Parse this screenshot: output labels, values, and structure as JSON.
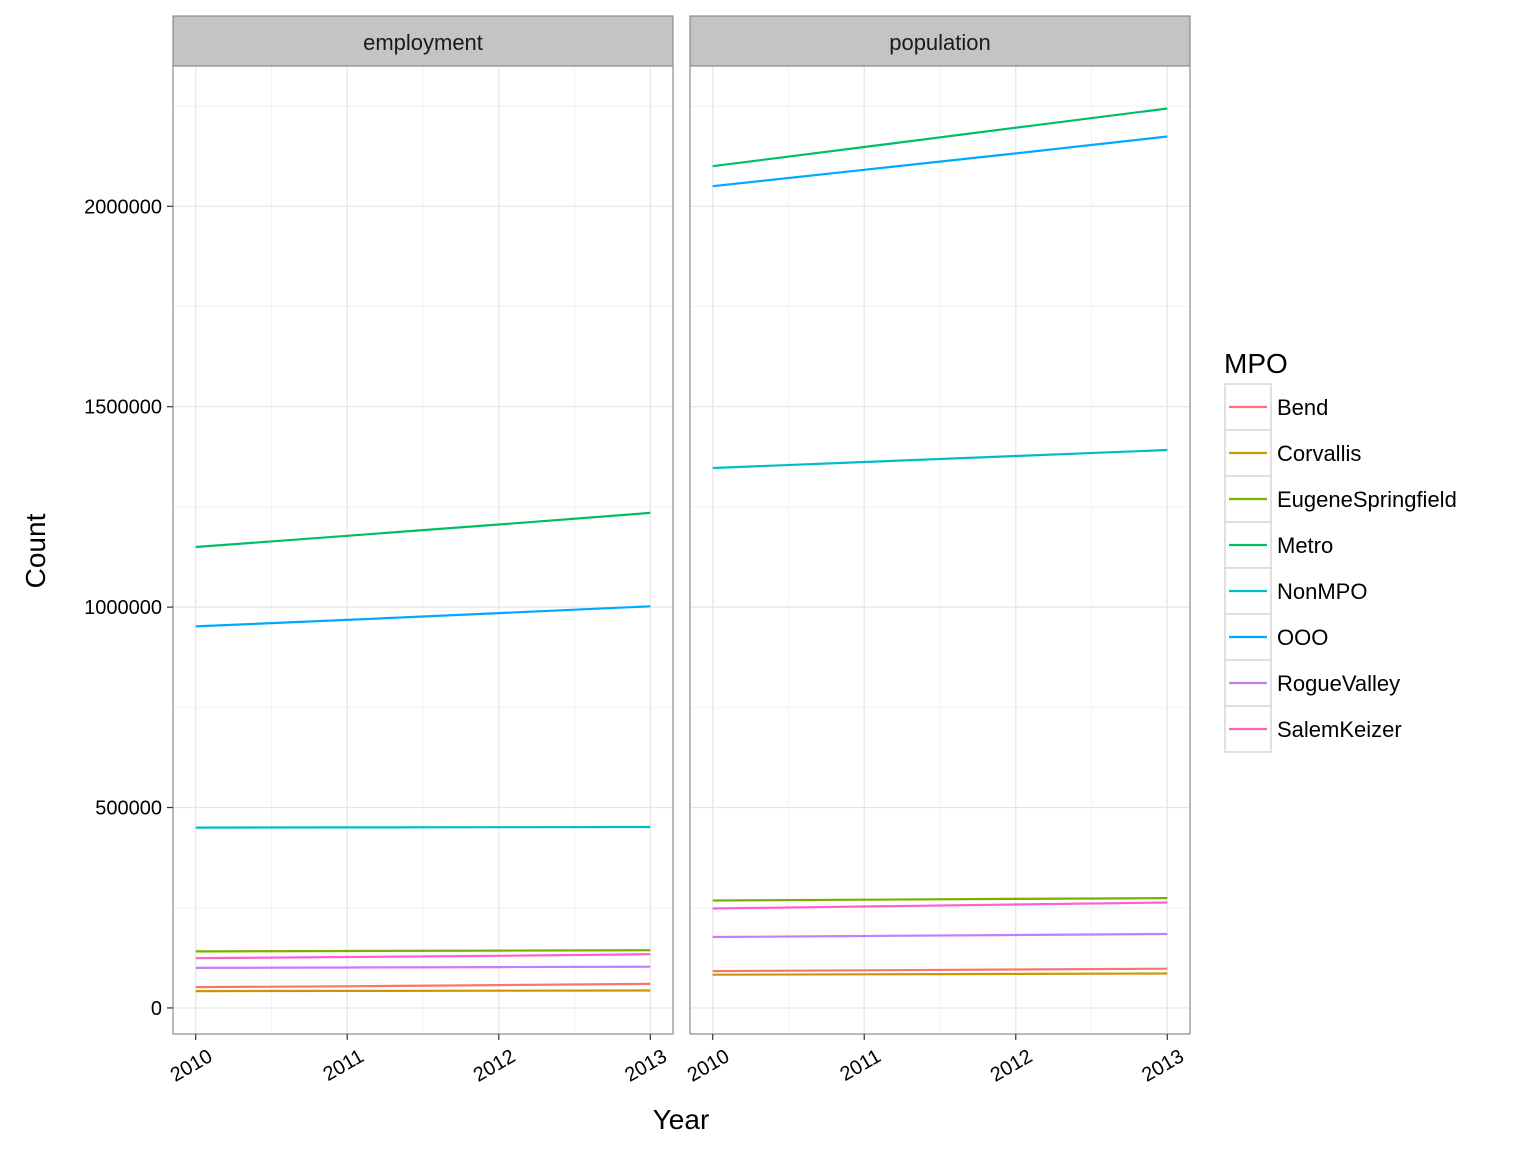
{
  "chart_data": {
    "type": "line",
    "xlabel": "Year",
    "ylabel": "Count",
    "x": [
      2010,
      2011,
      2012,
      2013
    ],
    "x_ticks": [
      "2010",
      "2011",
      "2012",
      "2013"
    ],
    "ylim": [
      -65000,
      2350000
    ],
    "y_ticks": [
      0,
      500000,
      1000000,
      1500000,
      2000000
    ],
    "y_tick_labels": [
      "0",
      "500000",
      "1000000",
      "1500000",
      "2000000"
    ],
    "grid": true,
    "legend": {
      "title": "MPO",
      "placement": "right",
      "entries": [
        "Bend",
        "Corvallis",
        "EugeneSpringfield",
        "Metro",
        "NonMPO",
        "OOO",
        "RogueValley",
        "SalemKeizer"
      ]
    },
    "colors": {
      "Bend": "#F8766D",
      "Corvallis": "#CD9600",
      "EugeneSpringfield": "#7CAE00",
      "Metro": "#00BE67",
      "NonMPO": "#00BFC4",
      "OOO": "#00A9FF",
      "RogueValley": "#C77CFF",
      "SalemKeizer": "#FF61CC"
    },
    "panels": [
      {
        "facet": "employment",
        "series": [
          {
            "name": "Bend",
            "values": [
              52000,
              54000,
              57000,
              60000
            ]
          },
          {
            "name": "Corvallis",
            "values": [
              42000,
              42500,
              43000,
              43500
            ]
          },
          {
            "name": "EugeneSpringfield",
            "values": [
              141000,
              142000,
              143000,
              144000
            ]
          },
          {
            "name": "Metro",
            "values": [
              1150000,
              1178000,
              1206000,
              1235000
            ]
          },
          {
            "name": "NonMPO",
            "values": [
              450000,
              450500,
              451000,
              451500
            ]
          },
          {
            "name": "OOO",
            "values": [
              952000,
              968000,
              985000,
              1002000
            ]
          },
          {
            "name": "RogueValley",
            "values": [
              100000,
              101000,
              102000,
              103000
            ]
          },
          {
            "name": "SalemKeizer",
            "values": [
              124000,
              127000,
              130000,
              134000
            ]
          }
        ]
      },
      {
        "facet": "population",
        "series": [
          {
            "name": "Bend",
            "values": [
              92000,
              94000,
              96000,
              98000
            ]
          },
          {
            "name": "Corvallis",
            "values": [
              83000,
              84000,
              85000,
              86000
            ]
          },
          {
            "name": "EugeneSpringfield",
            "values": [
              268000,
              270000,
              272000,
              274000
            ]
          },
          {
            "name": "Metro",
            "values": [
              2100000,
              2148000,
              2196000,
              2244000
            ]
          },
          {
            "name": "NonMPO",
            "values": [
              1347000,
              1362000,
              1377000,
              1392000
            ]
          },
          {
            "name": "OOO",
            "values": [
              2050000,
              2091000,
              2132000,
              2174000
            ]
          },
          {
            "name": "RogueValley",
            "values": [
              177000,
              179500,
              182000,
              184500
            ]
          },
          {
            "name": "SalemKeizer",
            "values": [
              248000,
              253000,
              258000,
              263000
            ]
          }
        ]
      }
    ]
  }
}
